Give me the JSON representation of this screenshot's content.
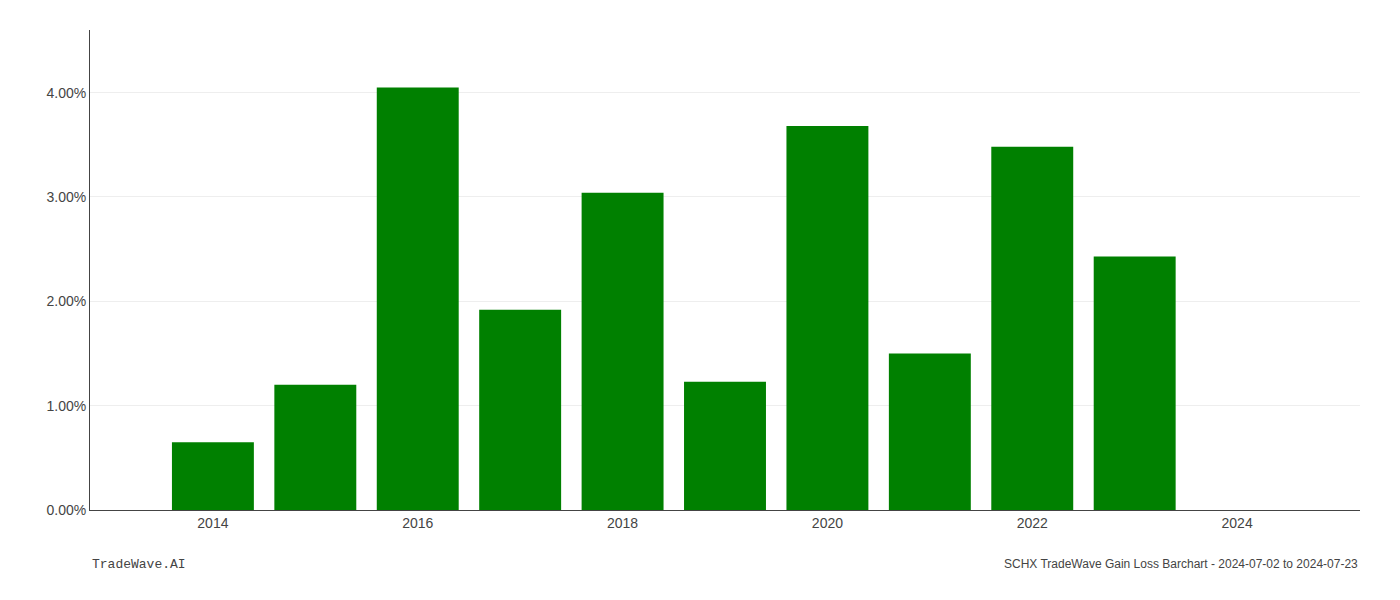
{
  "chart_data": {
    "type": "bar",
    "x": [
      2014,
      2015,
      2016,
      2017,
      2018,
      2019,
      2020,
      2021,
      2022,
      2023
    ],
    "values": [
      0.0065,
      0.012,
      0.0405,
      0.0192,
      0.0304,
      0.0123,
      0.0368,
      0.015,
      0.0348,
      0.0243
    ],
    "color": "#008000",
    "xlim": [
      2012.8,
      2025.2
    ],
    "xticks": [
      2014,
      2016,
      2018,
      2020,
      2022,
      2024
    ],
    "ylim": [
      0.0,
      0.046
    ],
    "yticks": [
      {
        "value": 0.0,
        "label": "0.00%"
      },
      {
        "value": 0.01,
        "label": "1.00%"
      },
      {
        "value": 0.02,
        "label": "2.00%"
      },
      {
        "value": 0.03,
        "label": "3.00%"
      },
      {
        "value": 0.04,
        "label": "4.00%"
      }
    ],
    "grid": true,
    "annotations": [
      "TradeWave.AI",
      "SCHX TradeWave Gain Loss Barchart - 2024-07-02 to 2024-07-23"
    ]
  }
}
